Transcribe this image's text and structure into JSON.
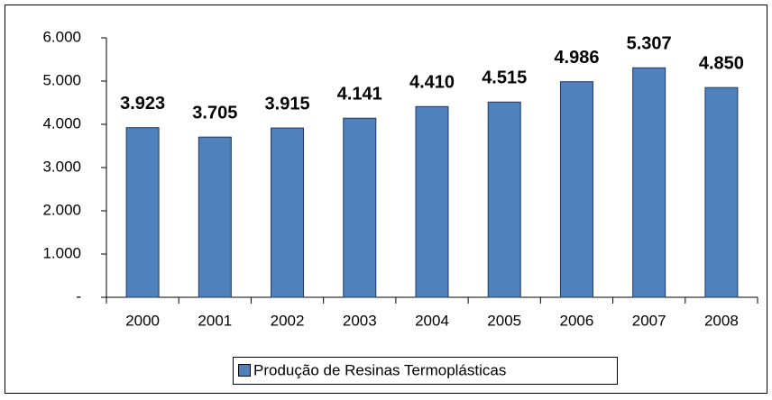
{
  "chart_data": {
    "type": "bar",
    "categories": [
      "2000",
      "2001",
      "2002",
      "2003",
      "2004",
      "2005",
      "2006",
      "2007",
      "2008"
    ],
    "series": [
      {
        "name": "Produção de Resinas Termoplásticas",
        "color": "#4f81bd",
        "values": [
          3923,
          3705,
          3915,
          4141,
          4410,
          4515,
          4986,
          5307,
          4850
        ],
        "value_labels": [
          "3.923",
          "3.705",
          "3.915",
          "4.141",
          "4.410",
          "4.515",
          "4.986",
          "5.307",
          "4.850"
        ]
      }
    ],
    "ylim": [
      0,
      6000
    ],
    "yticks": [
      {
        "value": 0,
        "label": "-"
      },
      {
        "value": 1000,
        "label": "1.000"
      },
      {
        "value": 2000,
        "label": "2.000"
      },
      {
        "value": 3000,
        "label": "3.000"
      },
      {
        "value": 4000,
        "label": "4.000"
      },
      {
        "value": 5000,
        "label": "5.000"
      },
      {
        "value": 6000,
        "label": "6.000"
      }
    ],
    "legend": "bottom"
  }
}
